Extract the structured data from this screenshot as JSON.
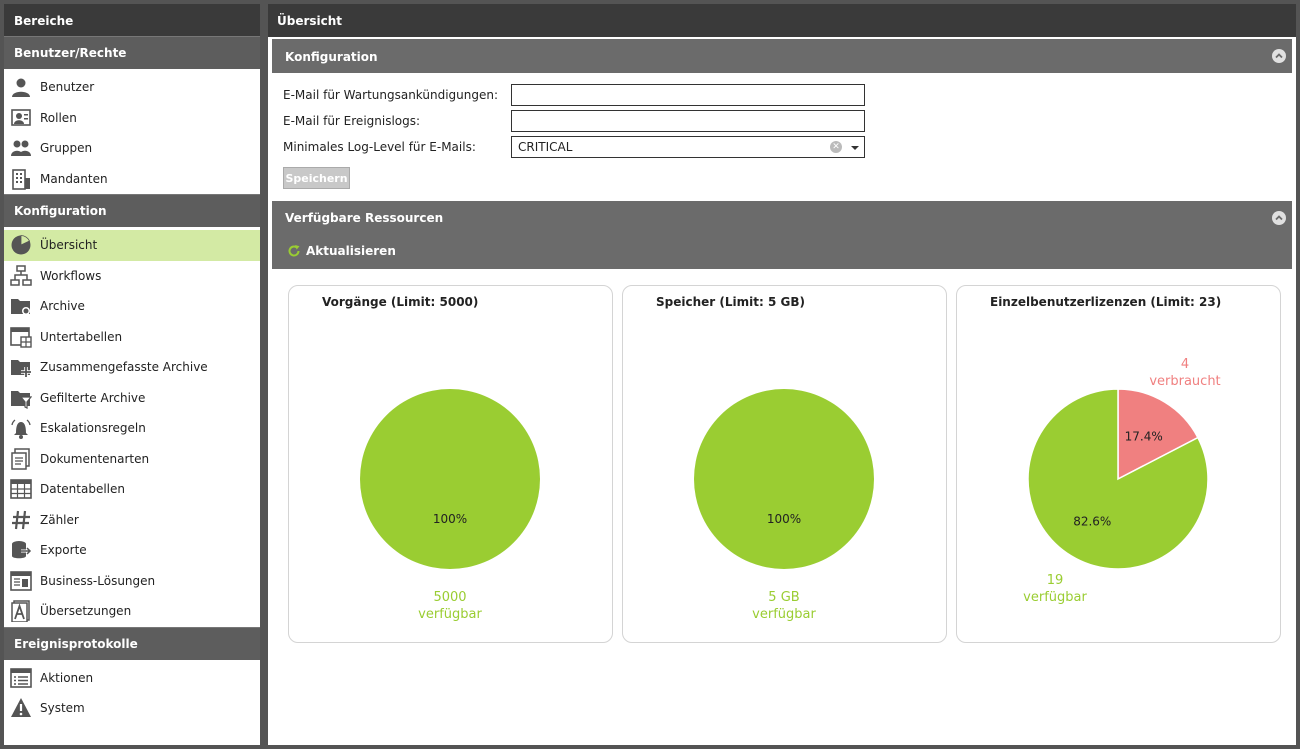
{
  "sidebar": {
    "title": "Bereiche",
    "sections": [
      {
        "label": "Benutzer/Rechte",
        "items": [
          {
            "label": "Benutzer",
            "icon": "user-icon"
          },
          {
            "label": "Rollen",
            "icon": "roles-icon"
          },
          {
            "label": "Gruppen",
            "icon": "groups-icon"
          },
          {
            "label": "Mandanten",
            "icon": "building-icon"
          }
        ]
      },
      {
        "label": "Konfiguration",
        "items": [
          {
            "label": "Übersicht",
            "icon": "pie-chart-icon",
            "active": true
          },
          {
            "label": "Workflows",
            "icon": "workflow-icon"
          },
          {
            "label": "Archive",
            "icon": "archive-folder-icon"
          },
          {
            "label": "Untertabellen",
            "icon": "subtable-icon"
          },
          {
            "label": "Zusammengefasste Archive",
            "icon": "merged-folder-icon"
          },
          {
            "label": "Gefilterte Archive",
            "icon": "filter-folder-icon"
          },
          {
            "label": "Eskalationsregeln",
            "icon": "bell-icon"
          },
          {
            "label": "Dokumentenarten",
            "icon": "document-types-icon"
          },
          {
            "label": "Datentabellen",
            "icon": "table-icon"
          },
          {
            "label": "Zähler",
            "icon": "hash-icon"
          },
          {
            "label": "Exporte",
            "icon": "export-icon"
          },
          {
            "label": "Business-Lösungen",
            "icon": "business-icon"
          },
          {
            "label": "Übersetzungen",
            "icon": "translation-icon"
          }
        ]
      },
      {
        "label": "Ereignisprotokolle",
        "items": [
          {
            "label": "Aktionen",
            "icon": "list-icon"
          },
          {
            "label": "System",
            "icon": "warning-icon"
          }
        ]
      }
    ]
  },
  "main": {
    "title": "Übersicht",
    "config": {
      "title": "Konfiguration",
      "maintenance_email_label": "E-Mail für Wartungsankündigungen:",
      "maintenance_email_value": "",
      "eventlog_email_label": "E-Mail für Ereignislogs:",
      "eventlog_email_value": "",
      "loglevel_label": "Minimales Log-Level für E-Mails:",
      "loglevel_value": "CRITICAL",
      "save_label": "Speichern"
    },
    "resources": {
      "title": "Verfügbare Ressourcen",
      "refresh_label": "Aktualisieren"
    }
  },
  "colors": {
    "available": "#9acd32",
    "used": "#f08080",
    "active_item": "#d3eaa4"
  },
  "chart_data": [
    {
      "type": "pie",
      "title": "Vorgänge (Limit: 5000)",
      "slices": [
        {
          "label": "verfügbar",
          "value": 5000,
          "value_text": "5000",
          "percent": "100%",
          "color": "#9acd32"
        }
      ]
    },
    {
      "type": "pie",
      "title": "Speicher (Limit: 5 GB)",
      "slices": [
        {
          "label": "verfügbar",
          "value": 5,
          "value_text": "5 GB",
          "percent": "100%",
          "color": "#9acd32"
        }
      ]
    },
    {
      "type": "pie",
      "title": "Einzelbenutzerlizenzen (Limit: 23)",
      "slices": [
        {
          "label": "verbraucht",
          "value": 4,
          "value_text": "4",
          "percent": "17.4%",
          "color": "#f08080"
        },
        {
          "label": "verfügbar",
          "value": 19,
          "value_text": "19",
          "percent": "82.6%",
          "color": "#9acd32"
        }
      ]
    }
  ]
}
